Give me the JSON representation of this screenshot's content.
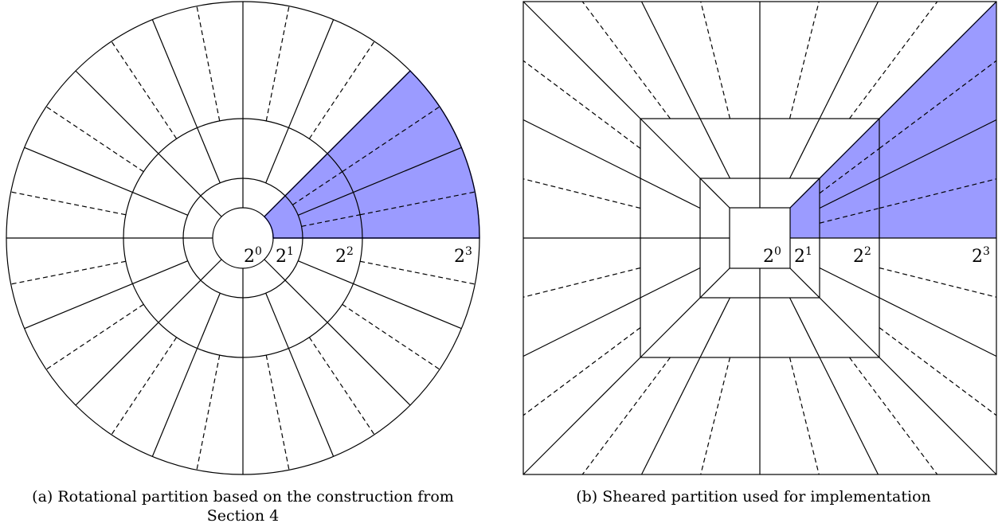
{
  "panels": {
    "a": {
      "caption_line1": "(a) Rotational partition based on the construction from",
      "caption_line2": "Section 4",
      "labels": [
        {
          "base": "2",
          "exp": "0"
        },
        {
          "base": "2",
          "exp": "1"
        },
        {
          "base": "2",
          "exp": "2"
        },
        {
          "base": "2",
          "exp": "3"
        }
      ]
    },
    "b": {
      "caption": "(b) Sheared partition used for implementation",
      "labels": [
        {
          "base": "2",
          "exp": "0"
        },
        {
          "base": "2",
          "exp": "1"
        },
        {
          "base": "2",
          "exp": "2"
        },
        {
          "base": "2",
          "exp": "3"
        }
      ]
    }
  },
  "colors": {
    "highlight_fill": "#9b9bff",
    "highlight_edge": "#1a1acc",
    "line": "#000000"
  }
}
